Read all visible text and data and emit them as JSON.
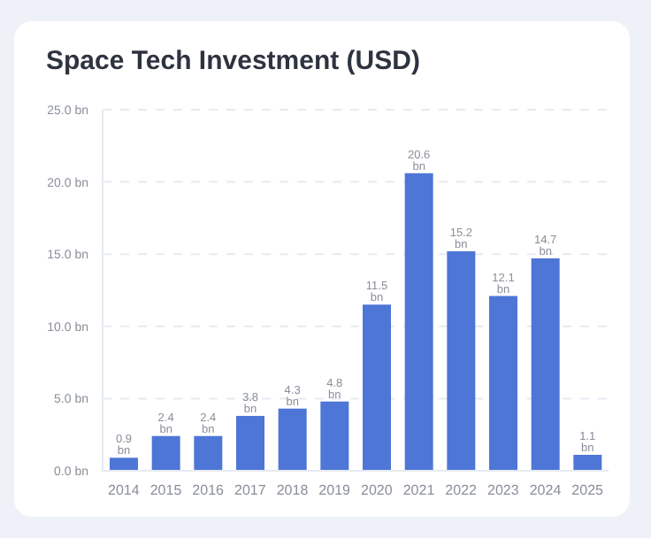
{
  "chart_data": {
    "type": "bar",
    "title": "Space Tech Investment (USD)",
    "categories": [
      "2014",
      "2015",
      "2016",
      "2017",
      "2018",
      "2019",
      "2020",
      "2021",
      "2022",
      "2023",
      "2024",
      "2025"
    ],
    "values": [
      0.9,
      2.4,
      2.4,
      3.8,
      4.3,
      4.8,
      11.5,
      20.6,
      15.2,
      12.1,
      14.7,
      1.1
    ],
    "value_labels": [
      "0.9 bn",
      "2.4 bn",
      "2.4 bn",
      "3.8 bn",
      "4.3 bn",
      "4.8 bn",
      "11.5 bn",
      "20.6 bn",
      "15.2 bn",
      "12.1 bn",
      "14.7 bn",
      "1.1 bn"
    ],
    "color": "#4e76d6",
    "ylim": [
      0,
      25
    ],
    "yticks": [
      {
        "value": 0,
        "label": "0.0 bn"
      },
      {
        "value": 5,
        "label": "5.0 bn"
      },
      {
        "value": 10,
        "label": "10.0 bn"
      },
      {
        "value": 15,
        "label": "15.0 bn"
      },
      {
        "value": 20,
        "label": "20.0 bn"
      },
      {
        "value": 25,
        "label": "25.0 bn"
      }
    ],
    "grid": "y"
  }
}
